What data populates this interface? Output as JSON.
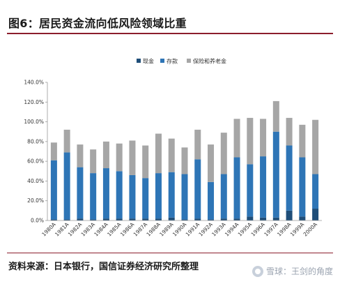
{
  "title": "图6：居民资金流向低风险领域比重",
  "source": "资料来源：日本银行，国信证券经济研究所整理",
  "watermark": "雪球：王剑的角度",
  "colors": {
    "cash": "#1f4e79",
    "deposit": "#2e75b6",
    "insurance": "#a6a6a6",
    "rule": "#8b1d2c"
  },
  "chart_data": {
    "type": "bar",
    "stacked": true,
    "title": "",
    "xlabel": "",
    "ylabel": "",
    "ylim": [
      0,
      140
    ],
    "yticks": [
      "0.0%",
      "20.0%",
      "40.0%",
      "60.0%",
      "80.0%",
      "100.0%",
      "120.0%",
      "140.0%"
    ],
    "grid": false,
    "legend": "top-center",
    "categories": [
      "1980A",
      "1981A",
      "1982A",
      "1983A",
      "1984A",
      "1985A",
      "1986A",
      "1987A",
      "1988A",
      "1989A",
      "1990A",
      "1991A",
      "1992A",
      "1993A",
      "1994A",
      "1995A",
      "1996A",
      "1997A",
      "1998A",
      "1999A",
      "2000A"
    ],
    "series": [
      {
        "name": "现金",
        "color": "#1f4e79",
        "values": [
          1,
          1,
          2,
          1,
          2,
          2,
          2,
          2,
          2,
          3,
          1,
          2,
          1,
          2,
          2,
          4,
          3,
          3,
          10,
          4,
          12
        ]
      },
      {
        "name": "存款",
        "color": "#2e75b6",
        "values": [
          60,
          68,
          52,
          47,
          51,
          48,
          44,
          41,
          46,
          46,
          46,
          60,
          38,
          45,
          62,
          53,
          62,
          87,
          66,
          60,
          35
        ]
      },
      {
        "name": "保险和养老金",
        "color": "#a6a6a6",
        "values": [
          18,
          23,
          23,
          24,
          27,
          28,
          35,
          33,
          40,
          34,
          27,
          30,
          38,
          42,
          39,
          47,
          38,
          31,
          28,
          33,
          55
        ]
      }
    ]
  }
}
